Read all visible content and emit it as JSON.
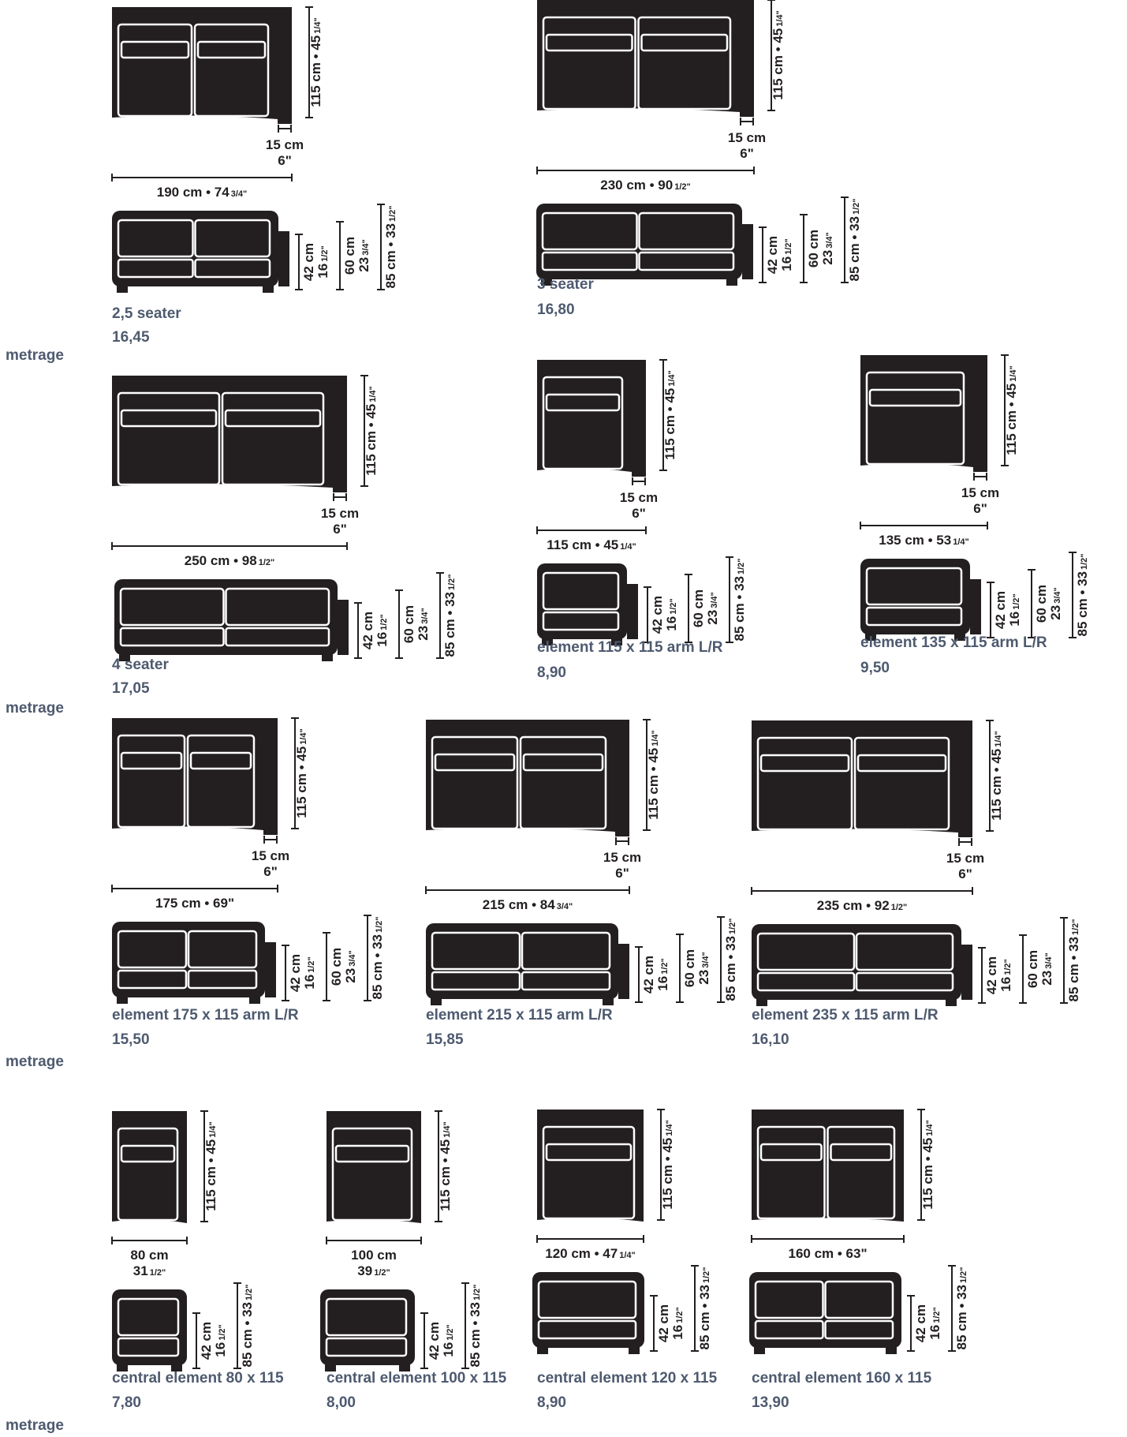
{
  "row_label": "metrage",
  "products": [
    {
      "name": "2,5 seater",
      "metrage": "16,45",
      "top_dims": [
        {
          "label": "190 cm • 74",
          "frac": "3/4\""
        }
      ],
      "depth": "115 cm • 45",
      "depth_frac": "1/4\"",
      "arm": "15 cm",
      "arm_in": "6\"",
      "seat": "42 cm",
      "seat_in": "16",
      "seat_frac": "1/2\"",
      "arm_h": "60 cm",
      "arm_h_in": "23",
      "arm_h_frac": "3/4\"",
      "total_h": "85 cm • 33",
      "total_h_frac": "1/2\""
    },
    {
      "name": "3 seater",
      "metrage": "16,80",
      "top_dims": [
        {
          "label": "230 cm • 90",
          "frac": "1/2\""
        }
      ],
      "depth": "115 cm • 45",
      "depth_frac": "1/4\"",
      "arm": "15 cm",
      "arm_in": "6\"",
      "seat": "42 cm",
      "seat_in": "16",
      "seat_frac": "1/2\"",
      "arm_h": "60 cm",
      "arm_h_in": "23",
      "arm_h_frac": "3/4\"",
      "total_h": "85 cm • 33",
      "total_h_frac": "1/2\""
    },
    {
      "name": "4 seater",
      "metrage": "17,05",
      "top_dims": [
        {
          "label": "250 cm • 98",
          "frac": "1/2\""
        }
      ],
      "depth": "115 cm • 45",
      "depth_frac": "1/4\"",
      "arm": "15 cm",
      "arm_in": "6\"",
      "seat": "42 cm",
      "seat_in": "16",
      "seat_frac": "1/2\"",
      "arm_h": "60 cm",
      "arm_h_in": "23",
      "arm_h_frac": "3/4\"",
      "total_h": "85 cm • 33",
      "total_h_frac": "1/2\""
    },
    {
      "name": "element 115 x 115 arm L/R",
      "metrage": "8,90",
      "top_dims": [
        {
          "label": "115 cm • 45",
          "frac": "1/4\""
        }
      ],
      "depth": "115 cm • 45",
      "depth_frac": "1/4\"",
      "arm": "15 cm",
      "arm_in": "6\"",
      "seat": "42 cm",
      "seat_in": "16",
      "seat_frac": "1/2\"",
      "arm_h": "60 cm",
      "arm_h_in": "23",
      "arm_h_frac": "3/4\"",
      "total_h": "85 cm • 33",
      "total_h_frac": "1/2\""
    },
    {
      "name": "element 135 x 115 arm L/R",
      "metrage": "9,50",
      "top_dims": [
        {
          "label": "135 cm • 53",
          "frac": "1/4\""
        }
      ],
      "depth": "115 cm • 45",
      "depth_frac": "1/4\"",
      "arm": "15 cm",
      "arm_in": "6\"",
      "seat": "42 cm",
      "seat_in": "16",
      "seat_frac": "1/2\"",
      "arm_h": "60 cm",
      "arm_h_in": "23",
      "arm_h_frac": "3/4\"",
      "total_h": "85 cm • 33",
      "total_h_frac": "1/2\""
    },
    {
      "name": "element 175 x 115 arm L/R",
      "metrage": "15,50",
      "top_dims": [
        {
          "label": "175 cm • 69\"",
          "frac": ""
        }
      ],
      "depth": "115 cm • 45",
      "depth_frac": "1/4\"",
      "arm": "15 cm",
      "arm_in": "6\"",
      "seat": "42 cm",
      "seat_in": "16",
      "seat_frac": "1/2\"",
      "arm_h": "60 cm",
      "arm_h_in": "23",
      "arm_h_frac": "3/4\"",
      "total_h": "85 cm • 33",
      "total_h_frac": "1/2\""
    },
    {
      "name": "element 215 x 115 arm L/R",
      "metrage": "15,85",
      "top_dims": [
        {
          "label": "215 cm • 84",
          "frac": "3/4\""
        }
      ],
      "depth": "115 cm • 45",
      "depth_frac": "1/4\"",
      "arm": "15 cm",
      "arm_in": "6\"",
      "seat": "42 cm",
      "seat_in": "16",
      "seat_frac": "1/2\"",
      "arm_h": "60 cm",
      "arm_h_in": "23",
      "arm_h_frac": "3/4\"",
      "total_h": "85 cm • 33",
      "total_h_frac": "1/2\""
    },
    {
      "name": "element 235 x 115 arm L/R",
      "metrage": "16,10",
      "top_dims": [
        {
          "label": "235 cm • 92",
          "frac": "1/2\""
        }
      ],
      "depth": "115 cm • 45",
      "depth_frac": "1/4\"",
      "arm": "15 cm",
      "arm_in": "6\"",
      "seat": "42 cm",
      "seat_in": "16",
      "seat_frac": "1/2\"",
      "arm_h": "60 cm",
      "arm_h_in": "23",
      "arm_h_frac": "3/4\"",
      "total_h": "85 cm • 33",
      "total_h_frac": "1/2\""
    },
    {
      "name": "central element 80 x 115",
      "metrage": "7,80",
      "top_dims": [
        {
          "label": "80 cm",
          "frac": ""
        },
        {
          "label": "31",
          "frac": "1/2\""
        }
      ],
      "depth": "115 cm • 45",
      "depth_frac": "1/4\"",
      "arm": "",
      "arm_in": "",
      "seat": "42 cm",
      "seat_in": "16",
      "seat_frac": "1/2\"",
      "arm_h": "",
      "arm_h_in": "",
      "arm_h_frac": "",
      "total_h": "85 cm • 33",
      "total_h_frac": "1/2\""
    },
    {
      "name": "central element 100 x 115",
      "metrage": "8,00",
      "top_dims": [
        {
          "label": "100 cm",
          "frac": ""
        },
        {
          "label": "39",
          "frac": "1/2\""
        }
      ],
      "depth": "115 cm • 45",
      "depth_frac": "1/4\"",
      "arm": "",
      "arm_in": "",
      "seat": "42 cm",
      "seat_in": "16",
      "seat_frac": "1/2\"",
      "arm_h": "",
      "arm_h_in": "",
      "arm_h_frac": "",
      "total_h": "85 cm • 33",
      "total_h_frac": "1/2\""
    },
    {
      "name": "central element 120 x 115",
      "metrage": "8,90",
      "top_dims": [
        {
          "label": "120 cm • 47",
          "frac": "1/4\""
        }
      ],
      "depth": "115 cm • 45",
      "depth_frac": "1/4\"",
      "arm": "",
      "arm_in": "",
      "seat": "42 cm",
      "seat_in": "16",
      "seat_frac": "1/2\"",
      "arm_h": "",
      "arm_h_in": "",
      "arm_h_frac": "",
      "total_h": "85 cm • 33",
      "total_h_frac": "1/2\""
    },
    {
      "name": "central element 160 x 115",
      "metrage": "13,90",
      "top_dims": [
        {
          "label": "160 cm • 63\"",
          "frac": ""
        }
      ],
      "depth": "115 cm • 45",
      "depth_frac": "1/4\"",
      "arm": "",
      "arm_in": "",
      "seat": "42 cm",
      "seat_in": "16",
      "seat_frac": "1/2\"",
      "arm_h": "",
      "arm_h_in": "",
      "arm_h_frac": "",
      "total_h": "85 cm • 33",
      "total_h_frac": "1/2\""
    }
  ]
}
